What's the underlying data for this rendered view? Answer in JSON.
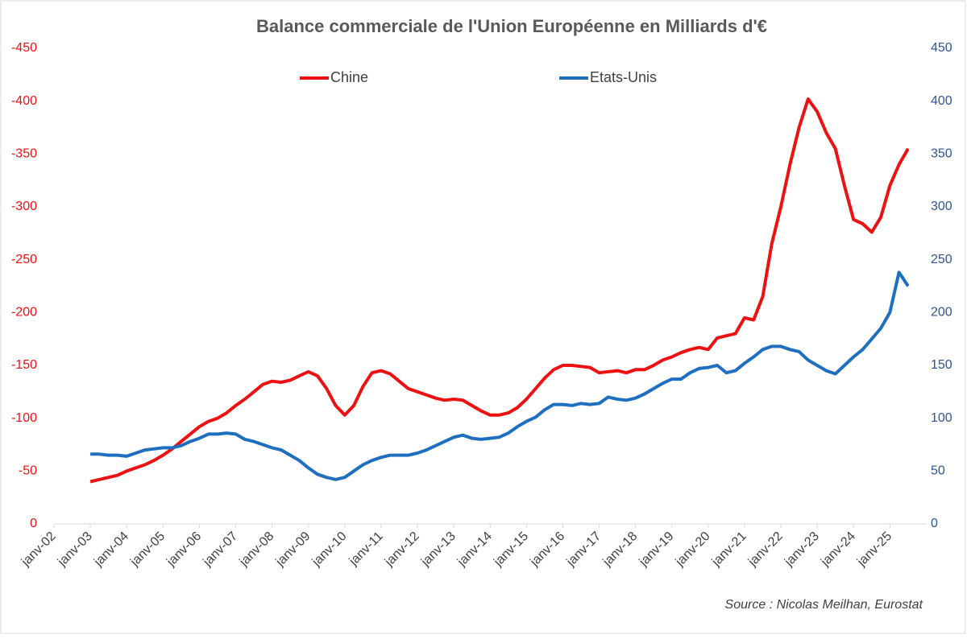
{
  "chart_data": {
    "type": "line",
    "title": "Balance commerciale de l'Union Européenne en Milliards d'€",
    "source": "Source : Nicolas Meilhan, Eurostat",
    "categories": [
      "janv-02",
      null,
      null,
      null,
      "janv-03",
      null,
      null,
      null,
      "janv-04",
      null,
      null,
      null,
      "janv-05",
      null,
      null,
      null,
      "janv-06",
      null,
      null,
      null,
      "janv-07",
      null,
      null,
      null,
      "janv-08",
      null,
      null,
      null,
      "janv-09",
      null,
      null,
      null,
      "janv-10",
      null,
      null,
      null,
      "janv-11",
      null,
      null,
      null,
      "janv-12",
      null,
      null,
      null,
      "janv-13",
      null,
      null,
      null,
      "janv-14",
      null,
      null,
      null,
      "janv-15",
      null,
      null,
      null,
      "janv-16",
      null,
      null,
      null,
      "janv-17",
      null,
      null,
      null,
      "janv-18",
      null,
      null,
      null,
      "janv-19",
      null,
      null,
      null,
      "janv-20",
      null,
      null,
      null,
      "janv-21",
      null,
      null,
      null,
      "janv-22",
      null,
      null,
      null,
      "janv-23",
      null,
      null,
      null,
      "janv-24",
      null,
      null,
      null,
      "janv-25",
      null,
      null
    ],
    "series": [
      {
        "name": "Chine",
        "color": "#ee1111",
        "axis": "y",
        "values": [
          null,
          null,
          null,
          null,
          -40,
          -42,
          -44,
          -46,
          -50,
          -53,
          -56,
          -60,
          -65,
          -71,
          -78,
          -85,
          -92,
          -97,
          -100,
          -105,
          -112,
          -118,
          -125,
          -132,
          -135,
          -134,
          -136,
          -140,
          -144,
          -140,
          -128,
          -112,
          -103,
          -112,
          -130,
          -143,
          -145,
          -142,
          -135,
          -128,
          -125,
          -122,
          -119,
          -117,
          -118,
          -117,
          -112,
          -107,
          -103,
          -103,
          -105,
          -110,
          -118,
          -128,
          -138,
          -146,
          -150,
          -150,
          -149,
          -148,
          -143,
          -144,
          -145,
          -143,
          -146,
          -146,
          -150,
          -155,
          -158,
          -162,
          -165,
          -167,
          -165,
          -176,
          -178,
          -180,
          -195,
          -193,
          -215,
          -265,
          -300,
          -340,
          -375,
          -402,
          -390,
          -370,
          -355,
          -320,
          -288,
          -284,
          -276,
          -290,
          -320,
          -340,
          -355
        ]
      },
      {
        "name": "Etats-Unis",
        "color": "#1f6fc0",
        "axis": "y2",
        "values": [
          null,
          null,
          null,
          null,
          66,
          66,
          65,
          65,
          64,
          67,
          70,
          71,
          72,
          72,
          74,
          78,
          81,
          85,
          85,
          86,
          85,
          80,
          78,
          75,
          72,
          70,
          65,
          60,
          53,
          47,
          44,
          42,
          44,
          50,
          56,
          60,
          63,
          65,
          65,
          65,
          67,
          70,
          74,
          78,
          82,
          84,
          81,
          80,
          81,
          82,
          86,
          92,
          97,
          101,
          108,
          113,
          113,
          112,
          114,
          113,
          114,
          120,
          118,
          117,
          119,
          123,
          128,
          133,
          137,
          137,
          143,
          147,
          148,
          150,
          143,
          145,
          152,
          158,
          165,
          168,
          168,
          165,
          163,
          155,
          150,
          145,
          142,
          150,
          158,
          165,
          175,
          185,
          200,
          238,
          225
        ]
      }
    ],
    "ylim": [
      0,
      -450
    ],
    "yticks": [
      -450,
      -400,
      -350,
      -300,
      -250,
      -200,
      -150,
      -100,
      -50,
      0
    ],
    "y2lim": [
      0,
      450
    ],
    "y2ticks": [
      0,
      50,
      100,
      150,
      200,
      250,
      300,
      350,
      400,
      450
    ],
    "legend": "top"
  }
}
